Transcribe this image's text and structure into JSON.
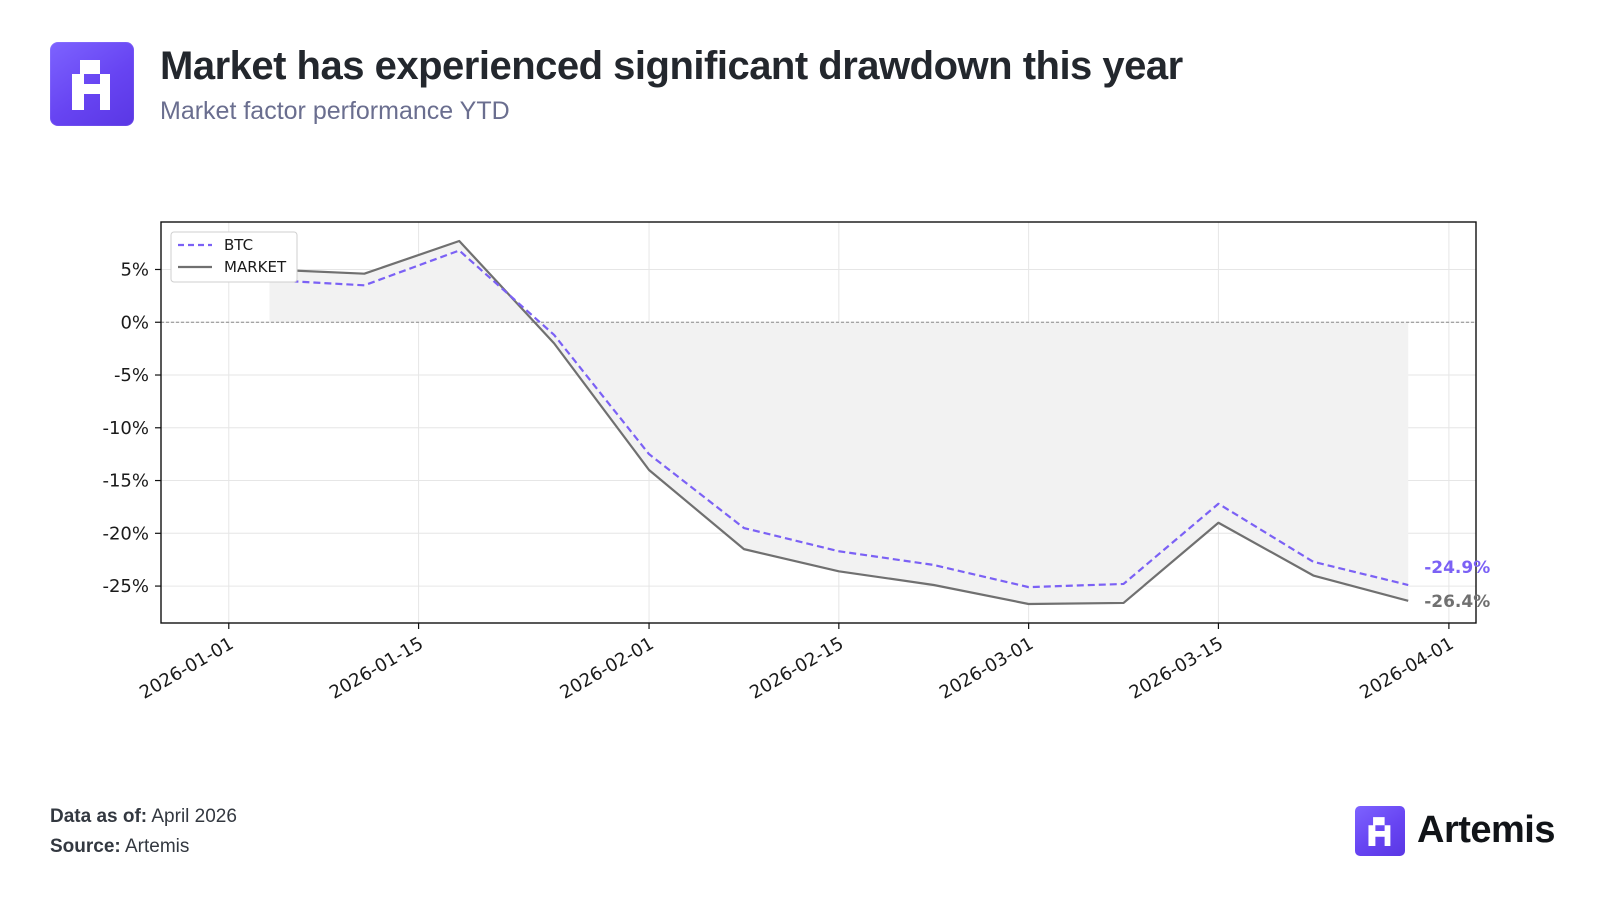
{
  "header": {
    "title": "Market has experienced significant drawdown this year",
    "subtitle": "Market factor performance YTD",
    "logo_icon": "artemis-logo-icon"
  },
  "footer": {
    "data_as_of_label": "Data as of:",
    "data_as_of_value": "April 2026",
    "source_label": "Source:",
    "source_value": "Artemis"
  },
  "brand": {
    "name": "Artemis",
    "logo_icon": "artemis-logo-icon",
    "color": "#6a4cf5"
  },
  "chart_data": {
    "type": "line",
    "title": "",
    "xlabel": "",
    "ylabel": "",
    "x_type": "date",
    "xlim": [
      "2025-12-27",
      "2026-04-03"
    ],
    "ylim": [
      -28.5,
      9.5
    ],
    "y_ticks": [
      5,
      0,
      -5,
      -10,
      -15,
      -20,
      -25
    ],
    "y_tick_labels": [
      "5%",
      "0%",
      "-5%",
      "-10%",
      "-15%",
      "-20%",
      "-25%"
    ],
    "x_ticks": [
      "2026-01-01",
      "2026-01-15",
      "2026-02-01",
      "2026-02-15",
      "2026-03-01",
      "2026-03-15",
      "2026-04-01"
    ],
    "x_tick_labels": [
      "2026-01-01",
      "2026-01-15",
      "2026-02-01",
      "2026-02-15",
      "2026-03-01",
      "2026-03-15",
      "2026-04-01"
    ],
    "grid": true,
    "zero_line": true,
    "legend_position": "top-left",
    "x": [
      "2026-01-04",
      "2026-01-11",
      "2026-01-18",
      "2026-01-25",
      "2026-02-01",
      "2026-02-08",
      "2026-02-15",
      "2026-02-22",
      "2026-03-01",
      "2026-03-08",
      "2026-03-15",
      "2026-03-22",
      "2026-03-29"
    ],
    "series": [
      {
        "name": "BTC",
        "color": "#7b61f5",
        "dash": "dashed",
        "values": [
          4.0,
          3.5,
          6.8,
          -1.2,
          -12.5,
          -19.5,
          -21.7,
          -23.0,
          -25.1,
          -24.8,
          -17.2,
          -22.7,
          -24.9
        ],
        "end_label": "-24.9%"
      },
      {
        "name": "MARKET",
        "color": "#707070",
        "dash": "solid",
        "values": [
          5.0,
          4.6,
          7.7,
          -2.0,
          -14.0,
          -21.5,
          -23.6,
          -24.9,
          -26.7,
          -26.6,
          -19.0,
          -24.0,
          -26.4
        ],
        "end_label": "-26.4%"
      }
    ],
    "fill": {
      "series": "MARKET",
      "baseline": 0,
      "color": "#f2f2f2"
    }
  }
}
